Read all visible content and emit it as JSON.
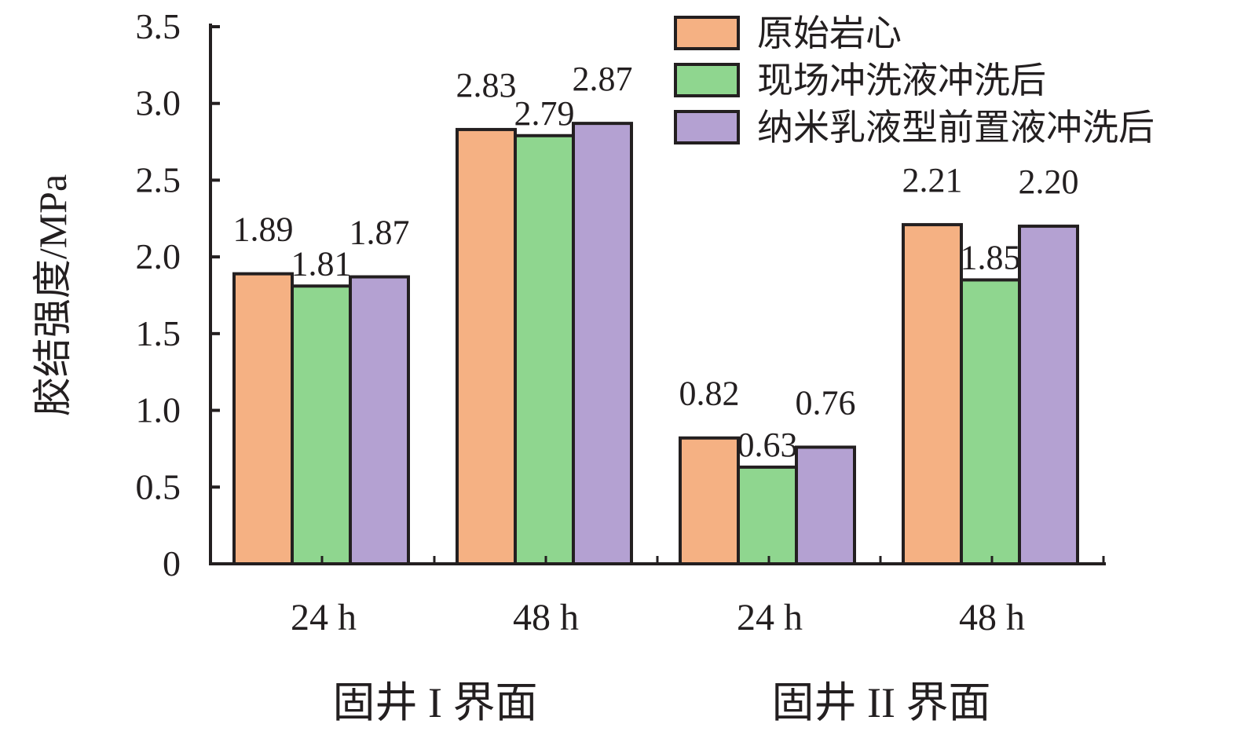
{
  "chart_data": {
    "type": "bar",
    "ylabel": "胶结强度/MPa",
    "ylim": [
      0,
      3.5
    ],
    "yticks": [
      "0",
      "0.5",
      "1.0",
      "1.5",
      "2.0",
      "2.5",
      "3.0",
      "3.5"
    ],
    "categories": [
      "24 h",
      "48 h",
      "24 h",
      "48 h"
    ],
    "groups": [
      "固井 I 界面",
      "固井 II 界面"
    ],
    "series": [
      {
        "name": "原始岩心",
        "color": "#f5b183",
        "values": [
          1.89,
          2.83,
          0.82,
          2.21
        ],
        "labels": [
          "1.89",
          "2.83",
          "0.82",
          "2.21"
        ]
      },
      {
        "name": "现场冲洗液冲洗后",
        "color": "#8fd68f",
        "values": [
          1.81,
          2.79,
          0.63,
          1.85
        ],
        "labels": [
          "1.81",
          "2.79",
          "0.63",
          "1.85"
        ]
      },
      {
        "name": "纳米乳液型前置液冲洗后",
        "color": "#b4a1d2",
        "values": [
          1.87,
          2.87,
          0.76,
          2.2
        ],
        "labels": [
          "1.87",
          "2.87",
          "0.76",
          "2.20"
        ]
      }
    ],
    "legend_position": "top-right",
    "grid": false
  }
}
